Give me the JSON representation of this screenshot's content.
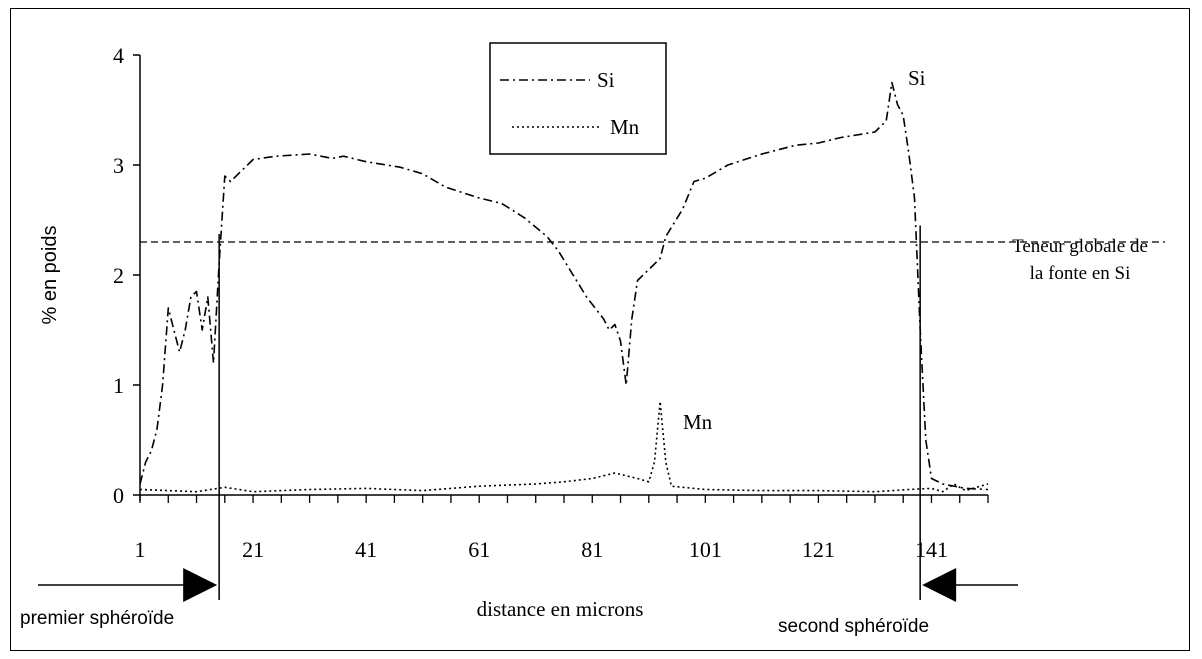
{
  "chart_data": {
    "type": "line",
    "ylabel": "% en poids",
    "xlabel": "distance en microns",
    "xlim": [
      1,
      151
    ],
    "ylim": [
      0,
      4
    ],
    "x_ticks": [
      "1",
      "21",
      "41",
      "61",
      "81",
      "101",
      "121",
      "141"
    ],
    "y_ticks": [
      "0",
      "1",
      "2",
      "3",
      "4"
    ],
    "legend": {
      "position": "top-center",
      "entries": [
        "Si",
        "Mn"
      ]
    },
    "series": [
      {
        "name": "Si",
        "style": "dash-dot",
        "points": [
          [
            1,
            0.1
          ],
          [
            2,
            0.3
          ],
          [
            3,
            0.4
          ],
          [
            4,
            0.6
          ],
          [
            5,
            1.0
          ],
          [
            6,
            1.7
          ],
          [
            7,
            1.5
          ],
          [
            8,
            1.3
          ],
          [
            9,
            1.5
          ],
          [
            10,
            1.8
          ],
          [
            11,
            1.85
          ],
          [
            12,
            1.5
          ],
          [
            13,
            1.8
          ],
          [
            14,
            1.2
          ],
          [
            15,
            2.1
          ],
          [
            16,
            2.9
          ],
          [
            17,
            2.85
          ],
          [
            19,
            2.95
          ],
          [
            21,
            3.05
          ],
          [
            25,
            3.08
          ],
          [
            31,
            3.1
          ],
          [
            35,
            3.06
          ],
          [
            37,
            3.08
          ],
          [
            41,
            3.03
          ],
          [
            47,
            2.98
          ],
          [
            51,
            2.92
          ],
          [
            55,
            2.8
          ],
          [
            61,
            2.7
          ],
          [
            65,
            2.65
          ],
          [
            69,
            2.52
          ],
          [
            73,
            2.35
          ],
          [
            75,
            2.22
          ],
          [
            77,
            2.05
          ],
          [
            80,
            1.8
          ],
          [
            83,
            1.6
          ],
          [
            84,
            1.5
          ],
          [
            85,
            1.55
          ],
          [
            86,
            1.4
          ],
          [
            87,
            1.0
          ],
          [
            88,
            1.6
          ],
          [
            89,
            1.95
          ],
          [
            91,
            2.05
          ],
          [
            93,
            2.15
          ],
          [
            94,
            2.35
          ],
          [
            97,
            2.6
          ],
          [
            99,
            2.85
          ],
          [
            101,
            2.88
          ],
          [
            105,
            3.0
          ],
          [
            111,
            3.1
          ],
          [
            117,
            3.18
          ],
          [
            121,
            3.2
          ],
          [
            125,
            3.25
          ],
          [
            131,
            3.3
          ],
          [
            133,
            3.4
          ],
          [
            134,
            3.75
          ],
          [
            135,
            3.55
          ],
          [
            136,
            3.45
          ],
          [
            137,
            3.1
          ],
          [
            138,
            2.7
          ],
          [
            139,
            1.5
          ],
          [
            140,
            0.5
          ],
          [
            141,
            0.15
          ],
          [
            143,
            0.1
          ],
          [
            147,
            0.06
          ],
          [
            151,
            0.05
          ]
        ]
      },
      {
        "name": "Mn",
        "style": "dotted",
        "points": [
          [
            1,
            0.05
          ],
          [
            11,
            0.03
          ],
          [
            16,
            0.07
          ],
          [
            21,
            0.03
          ],
          [
            31,
            0.05
          ],
          [
            41,
            0.06
          ],
          [
            51,
            0.04
          ],
          [
            61,
            0.08
          ],
          [
            71,
            0.1
          ],
          [
            76,
            0.12
          ],
          [
            81,
            0.15
          ],
          [
            85,
            0.2
          ],
          [
            89,
            0.15
          ],
          [
            91,
            0.12
          ],
          [
            92,
            0.3
          ],
          [
            93,
            0.85
          ],
          [
            94,
            0.3
          ],
          [
            95,
            0.08
          ],
          [
            101,
            0.05
          ],
          [
            111,
            0.04
          ],
          [
            121,
            0.04
          ],
          [
            131,
            0.03
          ],
          [
            137,
            0.05
          ],
          [
            141,
            0.06
          ],
          [
            143,
            0.03
          ],
          [
            145,
            0.1
          ],
          [
            147,
            0.04
          ],
          [
            151,
            0.1
          ]
        ]
      }
    ],
    "reference_line": {
      "y": 2.3,
      "label_line1": "Teneur globale de",
      "label_line2": "la fonte en Si"
    },
    "boundaries": [
      {
        "x": 15,
        "label": "premier sphéroïde",
        "arrow": "right"
      },
      {
        "x": 139,
        "label": "second sphéroïde",
        "arrow": "left"
      }
    ],
    "annotations": [
      {
        "text": "Si",
        "x": 136,
        "y": 3.75
      },
      {
        "text": "Mn",
        "x": 95,
        "y": 0.75
      }
    ]
  }
}
